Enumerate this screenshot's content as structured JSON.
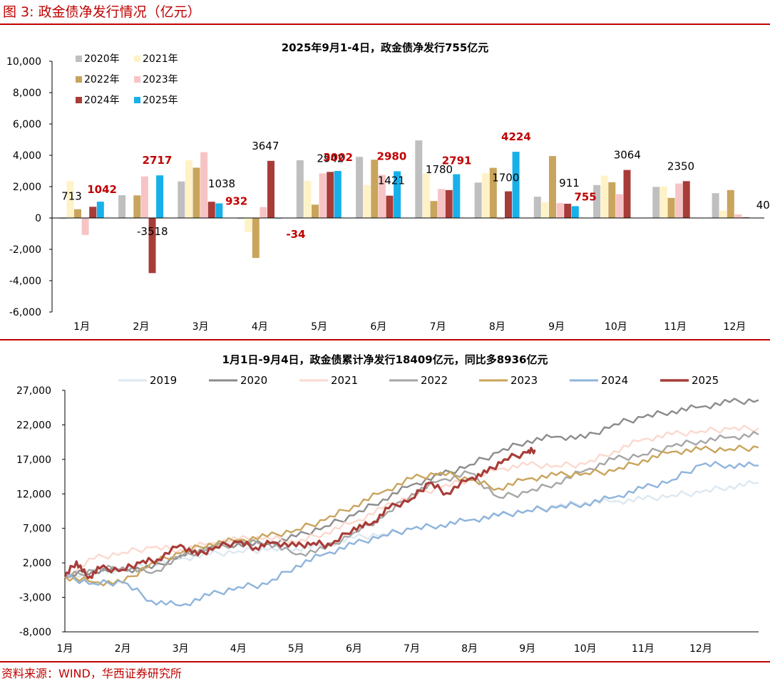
{
  "figure_title": "图 3:  政金债净发行情况（亿元）",
  "source_note": "资料来源：WIND，华西证券研究所",
  "colors": {
    "accent": "#c00000",
    "bar_2020": "#bfbfbf",
    "bar_2021": "#fff2c6",
    "bar_2022": "#c9a45c",
    "bar_2023": "#f7c4c6",
    "bar_2024": "#a83c38",
    "bar_2025": "#17b0ea",
    "line_2019": "#dde8f1",
    "line_2020": "#8c8c8c",
    "line_2021": "#fbd9cf",
    "line_2022": "#a6a6a6",
    "line_2023": "#c9a45c",
    "line_2024": "#8fb4dc",
    "line_2025": "#a83c38"
  },
  "chart_data": [
    {
      "type": "bar",
      "title": "2025年9月1-4日，政金债净发行755亿元",
      "categories": [
        "1月",
        "2月",
        "3月",
        "4月",
        "5月",
        "6月",
        "7月",
        "8月",
        "9月",
        "10月",
        "11月",
        "12月"
      ],
      "ylim": [
        -6000,
        10000
      ],
      "yticks": [
        "10,000",
        "8,000",
        "6,000",
        "4,000",
        "2,000",
        "0",
        "-2,000",
        "-4,000",
        "-6,000"
      ],
      "legend_position": "top-left",
      "series": [
        {
          "name": "2020年",
          "values": [
            -50,
            1450,
            2330,
            -50,
            3680,
            3900,
            4950,
            2260,
            1360,
            2100,
            1980,
            1580
          ]
        },
        {
          "name": "2021年",
          "values": [
            2350,
            -30,
            3680,
            -880,
            2370,
            2100,
            2840,
            2860,
            1000,
            2700,
            2020,
            480
          ]
        },
        {
          "name": "2022年",
          "values": [
            560,
            1440,
            3210,
            -2550,
            850,
            3720,
            1080,
            3200,
            3950,
            2280,
            1280,
            1780
          ]
        },
        {
          "name": "2023年",
          "values": [
            -1080,
            2650,
            4200,
            700,
            2850,
            2750,
            1850,
            -100,
            950,
            1520,
            2200,
            230
          ]
        },
        {
          "name": "2024年",
          "values": [
            713,
            -3518,
            1038,
            3647,
            2942,
            1421,
            1780,
            1700,
            911,
            3064,
            2350,
            40
          ]
        },
        {
          "name": "2025年",
          "values": [
            1042,
            2717,
            932,
            -34,
            3002,
            2980,
            2791,
            4224,
            755,
            null,
            null,
            null
          ]
        }
      ],
      "data_labels": [
        {
          "text": "713",
          "month": 1,
          "series": "2024年"
        },
        {
          "text": "1042",
          "month": 1,
          "series": "2025年",
          "red": true
        },
        {
          "text": "2717",
          "month": 2,
          "series": "2025年",
          "red": true
        },
        {
          "text": "-3518",
          "month": 2,
          "series": "2024年"
        },
        {
          "text": "1038",
          "month": 3,
          "series": "2024年"
        },
        {
          "text": "932",
          "month": 3,
          "series": "2025年",
          "red": true
        },
        {
          "text": "3647",
          "month": 4,
          "series": "2024年"
        },
        {
          "text": "-34",
          "month": 4,
          "series": "2025年",
          "red": true
        },
        {
          "text": "2942",
          "month": 5,
          "series": "2024年"
        },
        {
          "text": "3002",
          "month": 5,
          "series": "2025年",
          "red": true
        },
        {
          "text": "1421",
          "month": 6,
          "series": "2024年"
        },
        {
          "text": "2980",
          "month": 6,
          "series": "2025年",
          "red": true
        },
        {
          "text": "1780",
          "month": 7,
          "series": "2024年"
        },
        {
          "text": "2791",
          "month": 7,
          "series": "2025年",
          "red": true
        },
        {
          "text": "1700",
          "month": 8,
          "series": "2024年"
        },
        {
          "text": "4224",
          "month": 8,
          "series": "2025年",
          "red": true
        },
        {
          "text": "911",
          "month": 9,
          "series": "2024年"
        },
        {
          "text": "755",
          "month": 9,
          "series": "2025年",
          "red": true
        },
        {
          "text": "3064",
          "month": 10,
          "series": "2024年"
        },
        {
          "text": "2350",
          "month": 11,
          "series": "2024年"
        },
        {
          "text": "40",
          "month": 12,
          "series": "2024年"
        }
      ]
    },
    {
      "type": "line",
      "title": "1月1日-9月4日，政金债累计净发行18409亿元，同比多8936亿元",
      "x_ticks": [
        "1月",
        "2月",
        "3月",
        "4月",
        "5月",
        "6月",
        "7月",
        "8月",
        "9月",
        "10月",
        "11月",
        "12月"
      ],
      "ylim": [
        -8000,
        27000
      ],
      "yticks": [
        "27,000",
        "22,000",
        "17,000",
        "12,000",
        "7,000",
        "2,000",
        "-3,000",
        "-8,000"
      ],
      "legend_position": "top",
      "x_unit": "month (1 = 1月1日)",
      "series": [
        {
          "name": "2019",
          "x": [
            1,
            1.5,
            2,
            2.5,
            3,
            3.5,
            4,
            4.5,
            5,
            5.5,
            6,
            6.5,
            7,
            7.5,
            8,
            8.5,
            9,
            9.5,
            10,
            10.5,
            11,
            11.5,
            12,
            12.5,
            13
          ],
          "y": [
            0,
            800,
            1000,
            2000,
            2600,
            3200,
            3700,
            3900,
            4100,
            4600,
            5600,
            6200,
            6900,
            7500,
            8200,
            8900,
            9600,
            10200,
            10800,
            10900,
            11200,
            11800,
            12200,
            13100,
            13600
          ]
        },
        {
          "name": "2020",
          "x": [
            1,
            1.5,
            2,
            2.5,
            3,
            3.5,
            4,
            4.5,
            5,
            5.5,
            6,
            6.5,
            7,
            7.5,
            8,
            8.5,
            9,
            9.5,
            10,
            10.5,
            11,
            11.5,
            12,
            12.5,
            13
          ],
          "y": [
            0,
            900,
            1000,
            1200,
            3100,
            4200,
            4800,
            4700,
            5800,
            7300,
            8900,
            11200,
            13300,
            14700,
            16200,
            18000,
            19700,
            20300,
            20100,
            22100,
            23100,
            24000,
            24600,
            25300,
            25600
          ]
        },
        {
          "name": "2021",
          "x": [
            1,
            1.5,
            2,
            2.5,
            3,
            3.5,
            4,
            4.5,
            5,
            5.5,
            6,
            6.5,
            7,
            7.5,
            8,
            8.5,
            9,
            9.5,
            10,
            10.5,
            11,
            11.5,
            12,
            12.5,
            13
          ],
          "y": [
            0,
            2600,
            3500,
            4200,
            3900,
            4800,
            5400,
            5700,
            4900,
            6400,
            7900,
            9900,
            11800,
            12900,
            14100,
            15600,
            16200,
            16100,
            16300,
            18200,
            19900,
            20600,
            21100,
            21400,
            21500
          ]
        },
        {
          "name": "2022",
          "x": [
            1,
            1.5,
            2,
            2.5,
            3,
            3.5,
            4,
            4.5,
            5,
            5.5,
            6,
            6.5,
            7,
            7.5,
            8,
            8.5,
            9,
            9.5,
            10,
            10.5,
            11,
            11.5,
            12,
            12.5,
            13
          ],
          "y": [
            0,
            900,
            1400,
            500,
            2800,
            4200,
            4800,
            5000,
            3200,
            4000,
            6400,
            8600,
            12000,
            14000,
            15000,
            11500,
            12200,
            13600,
            15400,
            17000,
            17700,
            18900,
            19700,
            20200,
            20600
          ]
        },
        {
          "name": "2023",
          "x": [
            1,
            1.5,
            2,
            2.5,
            3,
            3.5,
            4,
            4.5,
            5,
            5.5,
            6,
            6.5,
            7,
            7.5,
            8,
            8.5,
            9,
            9.5,
            10,
            10.5,
            11,
            11.5,
            12,
            12.5,
            13
          ],
          "y": [
            0,
            -800,
            -900,
            2000,
            3400,
            4800,
            5300,
            5800,
            6800,
            8200,
            10300,
            12300,
            14200,
            15100,
            14000,
            12800,
            14200,
            14700,
            15000,
            15300,
            16900,
            18100,
            18400,
            18500,
            18700
          ]
        },
        {
          "name": "2024",
          "x": [
            1,
            1.5,
            2,
            2.5,
            3,
            3.5,
            4,
            4.5,
            5,
            5.5,
            6,
            6.5,
            7,
            7.5,
            8,
            8.5,
            9,
            9.5,
            10,
            10.5,
            11,
            11.5,
            12,
            12.5,
            13
          ],
          "y": [
            0,
            -1000,
            -800,
            -3500,
            -4200,
            -2700,
            -1500,
            -1100,
            1600,
            3300,
            4700,
            6000,
            6900,
            7500,
            8200,
            8800,
            9600,
            10000,
            10600,
            11500,
            12800,
            14000,
            16200,
            16200,
            16100
          ]
        },
        {
          "name": "2025",
          "x": [
            1,
            1.2,
            1.4,
            1.6,
            2,
            2.3,
            2.6,
            3,
            3.3,
            3.6,
            4,
            4.3,
            4.6,
            5,
            5.3,
            5.6,
            6,
            6.3,
            6.6,
            7,
            7.3,
            7.6,
            8,
            8.3,
            8.6,
            9,
            9.13
          ],
          "y": [
            0,
            2200,
            -200,
            1200,
            1000,
            2000,
            2500,
            4600,
            3100,
            4300,
            5000,
            4200,
            5000,
            4400,
            4900,
            4500,
            7100,
            7600,
            9900,
            11300,
            13600,
            12100,
            14200,
            15100,
            17000,
            18000,
            18409
          ]
        }
      ]
    }
  ]
}
